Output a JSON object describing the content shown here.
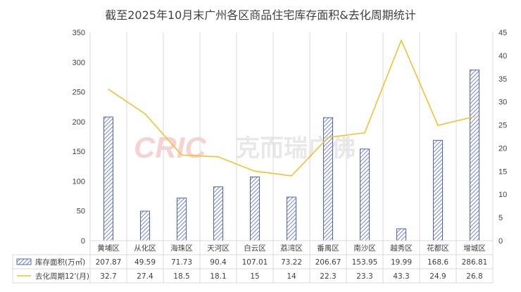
{
  "chart_data": {
    "type": "bar",
    "title": "截至2025年10月末广州各区商品住宅库存面积&去化周期统计",
    "categories": [
      "黄埔区",
      "从化区",
      "海珠区",
      "天河区",
      "白云区",
      "荔湾区",
      "番禺区",
      "南沙区",
      "越秀区",
      "花都区",
      "增城区"
    ],
    "series": [
      {
        "name": "库存面积(万㎡)",
        "type": "bar",
        "axis": "left",
        "values": [
          207.87,
          49.59,
          71.73,
          90.4,
          107.01,
          73.22,
          206.67,
          153.95,
          19.99,
          168.6,
          286.81
        ],
        "color": "#4f63d8",
        "pattern": "diagonal-hatch"
      },
      {
        "name": "去化周期12'(月)",
        "type": "line",
        "axis": "right",
        "values": [
          32.7,
          27.4,
          18.5,
          18.1,
          15,
          14,
          22.3,
          23.3,
          43.3,
          24.9,
          26.8
        ],
        "color": "#f2c12e"
      }
    ],
    "y_left": {
      "range": [
        0,
        350
      ],
      "ticks": [
        "0",
        "50",
        "100",
        "150",
        "200",
        "250",
        "300",
        "350"
      ]
    },
    "y_right": {
      "range": [
        0,
        45
      ],
      "ticks": [
        "0",
        "5",
        "10",
        "15",
        "20",
        "25",
        "30",
        "35",
        "40",
        "45"
      ]
    },
    "grid": "vertical-category-lines",
    "legend": "data-table-below",
    "watermark": {
      "logo": "CRIC",
      "text": "克而瑞广佛"
    }
  }
}
